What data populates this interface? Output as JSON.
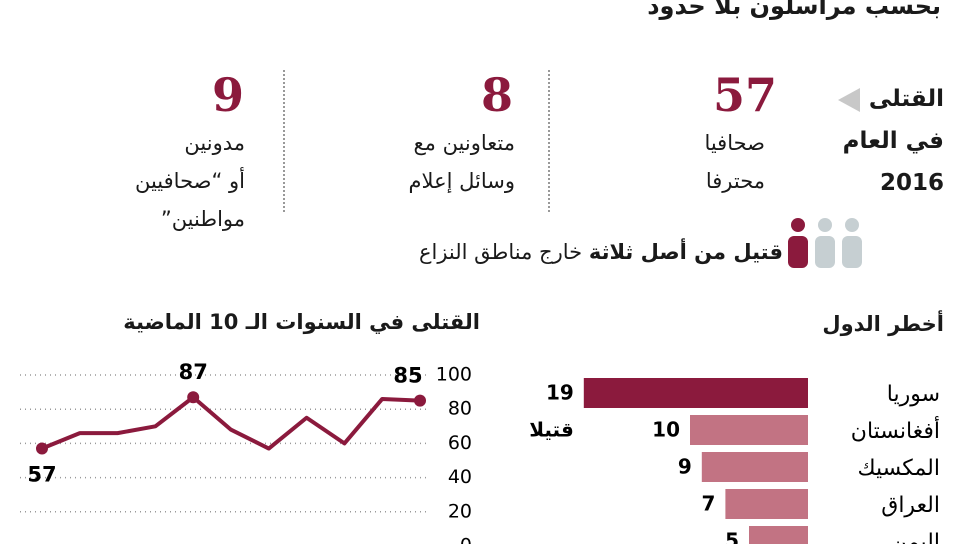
{
  "header": {
    "title": "بحسب مراسلون بلا حدود"
  },
  "killed_label": [
    "القتلى",
    "في العام",
    "2016"
  ],
  "stats": [
    {
      "value": 57,
      "label": [
        "صحافيا",
        "محترفا"
      ]
    },
    {
      "value": 8,
      "label": [
        "متعاونين مع",
        "وسائل إعلام"
      ]
    },
    {
      "value": 9,
      "label": [
        "مدونين",
        "أو “صحافيين",
        "مواطنين”"
      ]
    }
  ],
  "note": {
    "bold": "قتيل من أصل ثلاثة",
    "rest": "خارج مناطق النزاع"
  },
  "chart_data": [
    {
      "type": "bar",
      "orientation": "horizontal",
      "title": "أخطر الدول",
      "categories": [
        "سوريا",
        "أفغانستان",
        "المكسيك",
        "العراق",
        "اليمن"
      ],
      "values": [
        19,
        10,
        9,
        7,
        5
      ],
      "colors": [
        "#8b1a3d",
        "#c27383",
        "#c27383",
        "#c27383",
        "#c27383"
      ],
      "annotation": "قتيلا"
    },
    {
      "type": "line",
      "title": "القتلى في السنوات الـ 10 الماضية",
      "categories": [
        null,
        null,
        null,
        null,
        null,
        null,
        null,
        null,
        null,
        null,
        null
      ],
      "values": [
        57,
        66,
        66,
        70,
        87,
        68,
        57,
        75,
        60,
        86,
        85
      ],
      "value_labels": [
        "57",
        null,
        null,
        null,
        "87",
        null,
        null,
        null,
        null,
        null,
        "85"
      ],
      "color": "#8b1a3d",
      "ylim": [
        0,
        100
      ],
      "yticks": [
        0,
        20,
        40,
        60,
        80,
        100
      ],
      "grid": true
    }
  ]
}
